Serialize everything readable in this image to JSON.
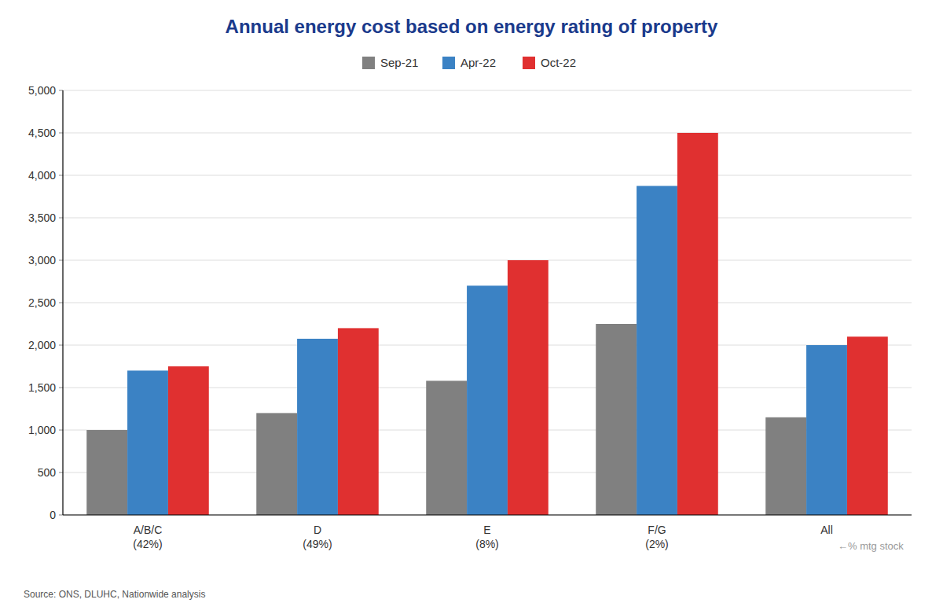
{
  "chart_data": {
    "type": "bar",
    "title": "Annual energy cost based on energy rating of property",
    "categories": [
      "A/B/C\n(42%)",
      "D\n(49%)",
      "E\n(8%)",
      "F/G\n(2%)",
      "All"
    ],
    "series": [
      {
        "name": "Sep-21",
        "color": "#808080",
        "values": [
          1000,
          1200,
          1580,
          2250,
          1150
        ]
      },
      {
        "name": "Apr-22",
        "color": "#3b82c4",
        "values": [
          1700,
          2075,
          2700,
          3875,
          2000
        ]
      },
      {
        "name": "Oct-22",
        "color": "#e03030",
        "values": [
          1750,
          2200,
          3000,
          4500,
          2100
        ]
      }
    ],
    "ylim": [
      0,
      5000
    ],
    "yticks": [
      0,
      500,
      {
        "value": 1000,
        "label": "1,000"
      },
      {
        "value": 1500,
        "label": "1,500"
      },
      {
        "value": 2000,
        "label": "2,000"
      },
      {
        "value": 2500,
        "label": "2,500"
      },
      {
        "value": 3000,
        "label": "3,000"
      },
      {
        "value": 3500,
        "label": "3,500"
      },
      {
        "value": 4000,
        "label": "4,000"
      },
      {
        "value": 4500,
        "label": "4,500"
      },
      {
        "value": 5000,
        "label": "5,000"
      }
    ],
    "grid": true,
    "legend": "top",
    "annotations": [
      "←% mtg stock"
    ],
    "source": "Source: ONS, DLUHC, Nationwide analysis"
  }
}
